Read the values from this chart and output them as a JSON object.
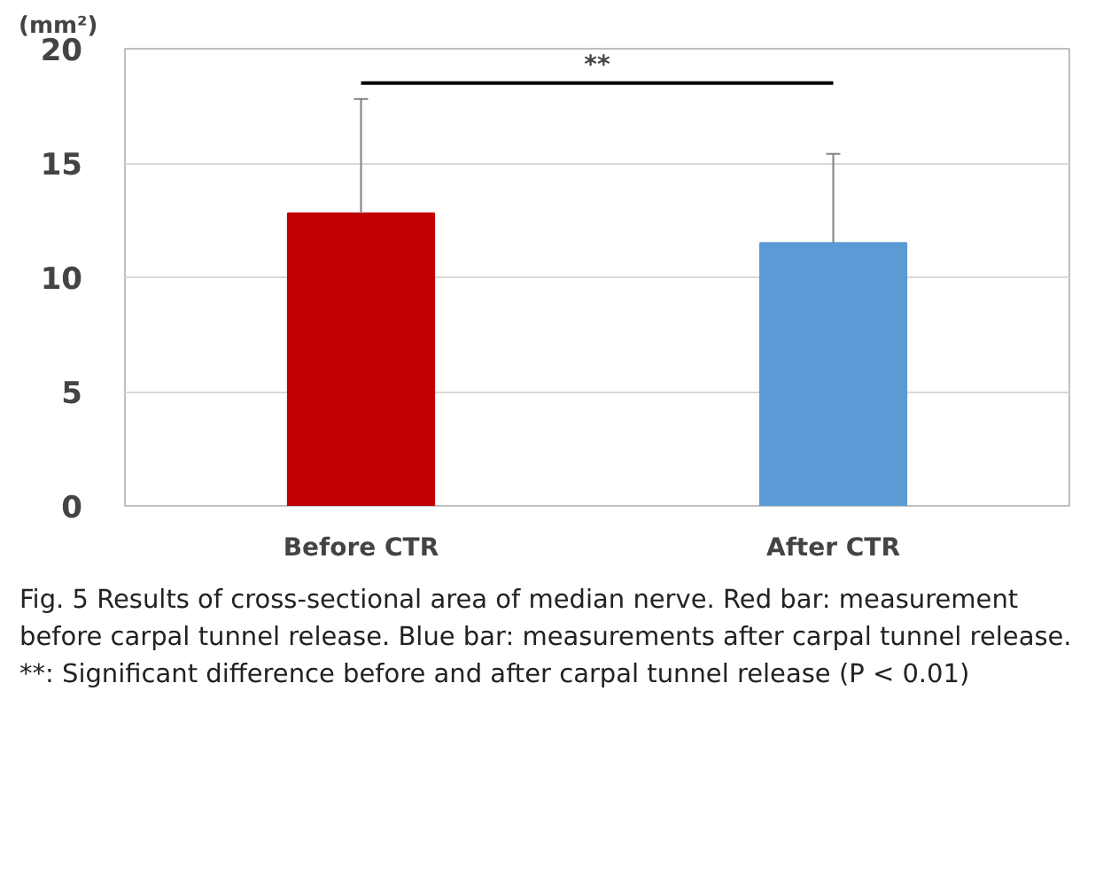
{
  "chart_data": {
    "type": "bar",
    "ylabel": "(mm²)",
    "categories": [
      "Before CTR",
      "After CTR"
    ],
    "values": [
      12.8,
      11.5
    ],
    "colors": [
      "#c00000",
      "#5b9bd5"
    ],
    "errors": [
      [
        12.8,
        17.8
      ],
      [
        11.5,
        15.4
      ]
    ],
    "ylim": [
      0,
      20
    ],
    "yticks": [
      0,
      5,
      10,
      15,
      20
    ],
    "grid": "y",
    "annotations": [
      "**",
      "Fig. 5 Results of cross-sectional area of median nerve. Red bar: measurement before carpal tunnel release. Blue bar: measurements after carpal tunnel release. **: Significant difference before and after carpal tunnel release (P < 0.01)"
    ]
  }
}
